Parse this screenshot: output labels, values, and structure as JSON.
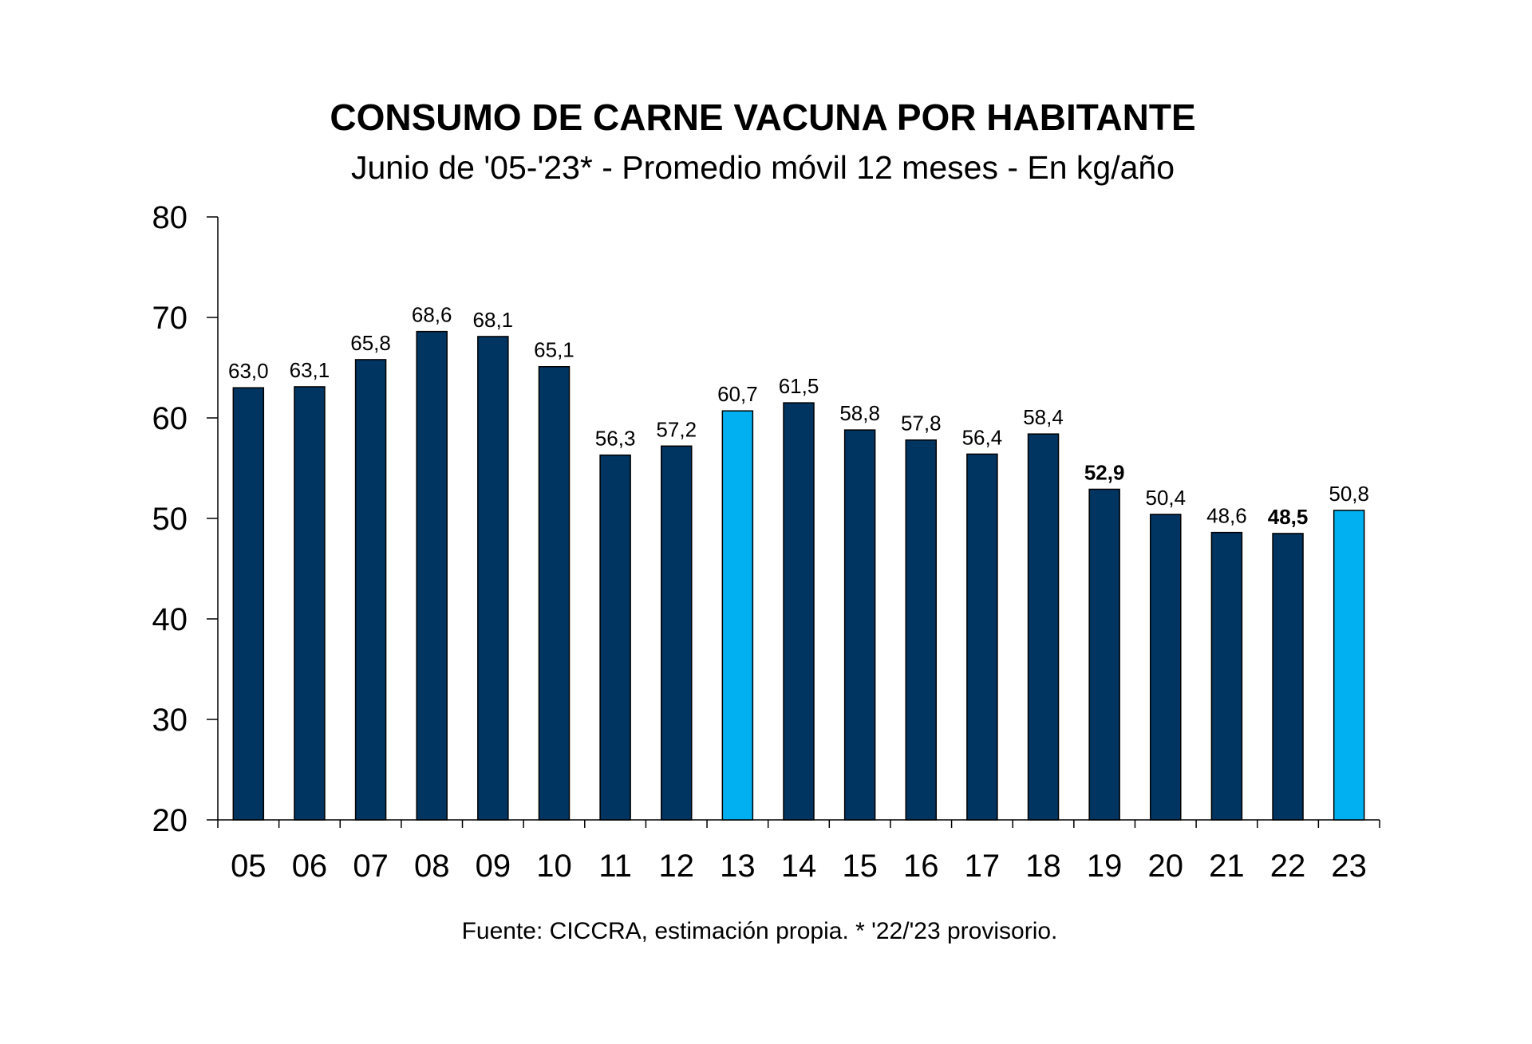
{
  "chart_data": {
    "type": "bar",
    "title": "CONSUMO DE CARNE VACUNA POR HABITANTE",
    "subtitle": "Junio de '05-'23* - Promedio móvil 12 meses -  En kg/año",
    "source": "Fuente: CICCRA, estimación propia. * '22/'23 provisorio.",
    "xlabel": "",
    "ylabel": "",
    "ylim": [
      20,
      80
    ],
    "yticks": [
      20,
      30,
      40,
      50,
      60,
      70,
      80
    ],
    "grid": false,
    "categories": [
      "05",
      "06",
      "07",
      "08",
      "09",
      "10",
      "11",
      "12",
      "13",
      "14",
      "15",
      "16",
      "17",
      "18",
      "19",
      "20",
      "21",
      "22",
      "23"
    ],
    "values": [
      63.0,
      63.1,
      65.8,
      68.6,
      68.1,
      65.1,
      56.3,
      57.2,
      60.7,
      61.5,
      58.8,
      57.8,
      56.4,
      58.4,
      52.9,
      50.4,
      48.6,
      48.5,
      50.8
    ],
    "value_labels": [
      "63,0",
      "63,1",
      "65,8",
      "68,6",
      "68,1",
      "65,1",
      "56,3",
      "57,2",
      "60,7",
      "61,5",
      "58,8",
      "57,8",
      "56,4",
      "58,4",
      "52,9",
      "50,4",
      "48,6",
      "48,5",
      "50,8"
    ],
    "bold_labels": [
      "19",
      "22"
    ],
    "highlighted": [
      "13",
      "23"
    ],
    "colors": {
      "default": "#003461",
      "highlight": "#00b0f0"
    }
  }
}
